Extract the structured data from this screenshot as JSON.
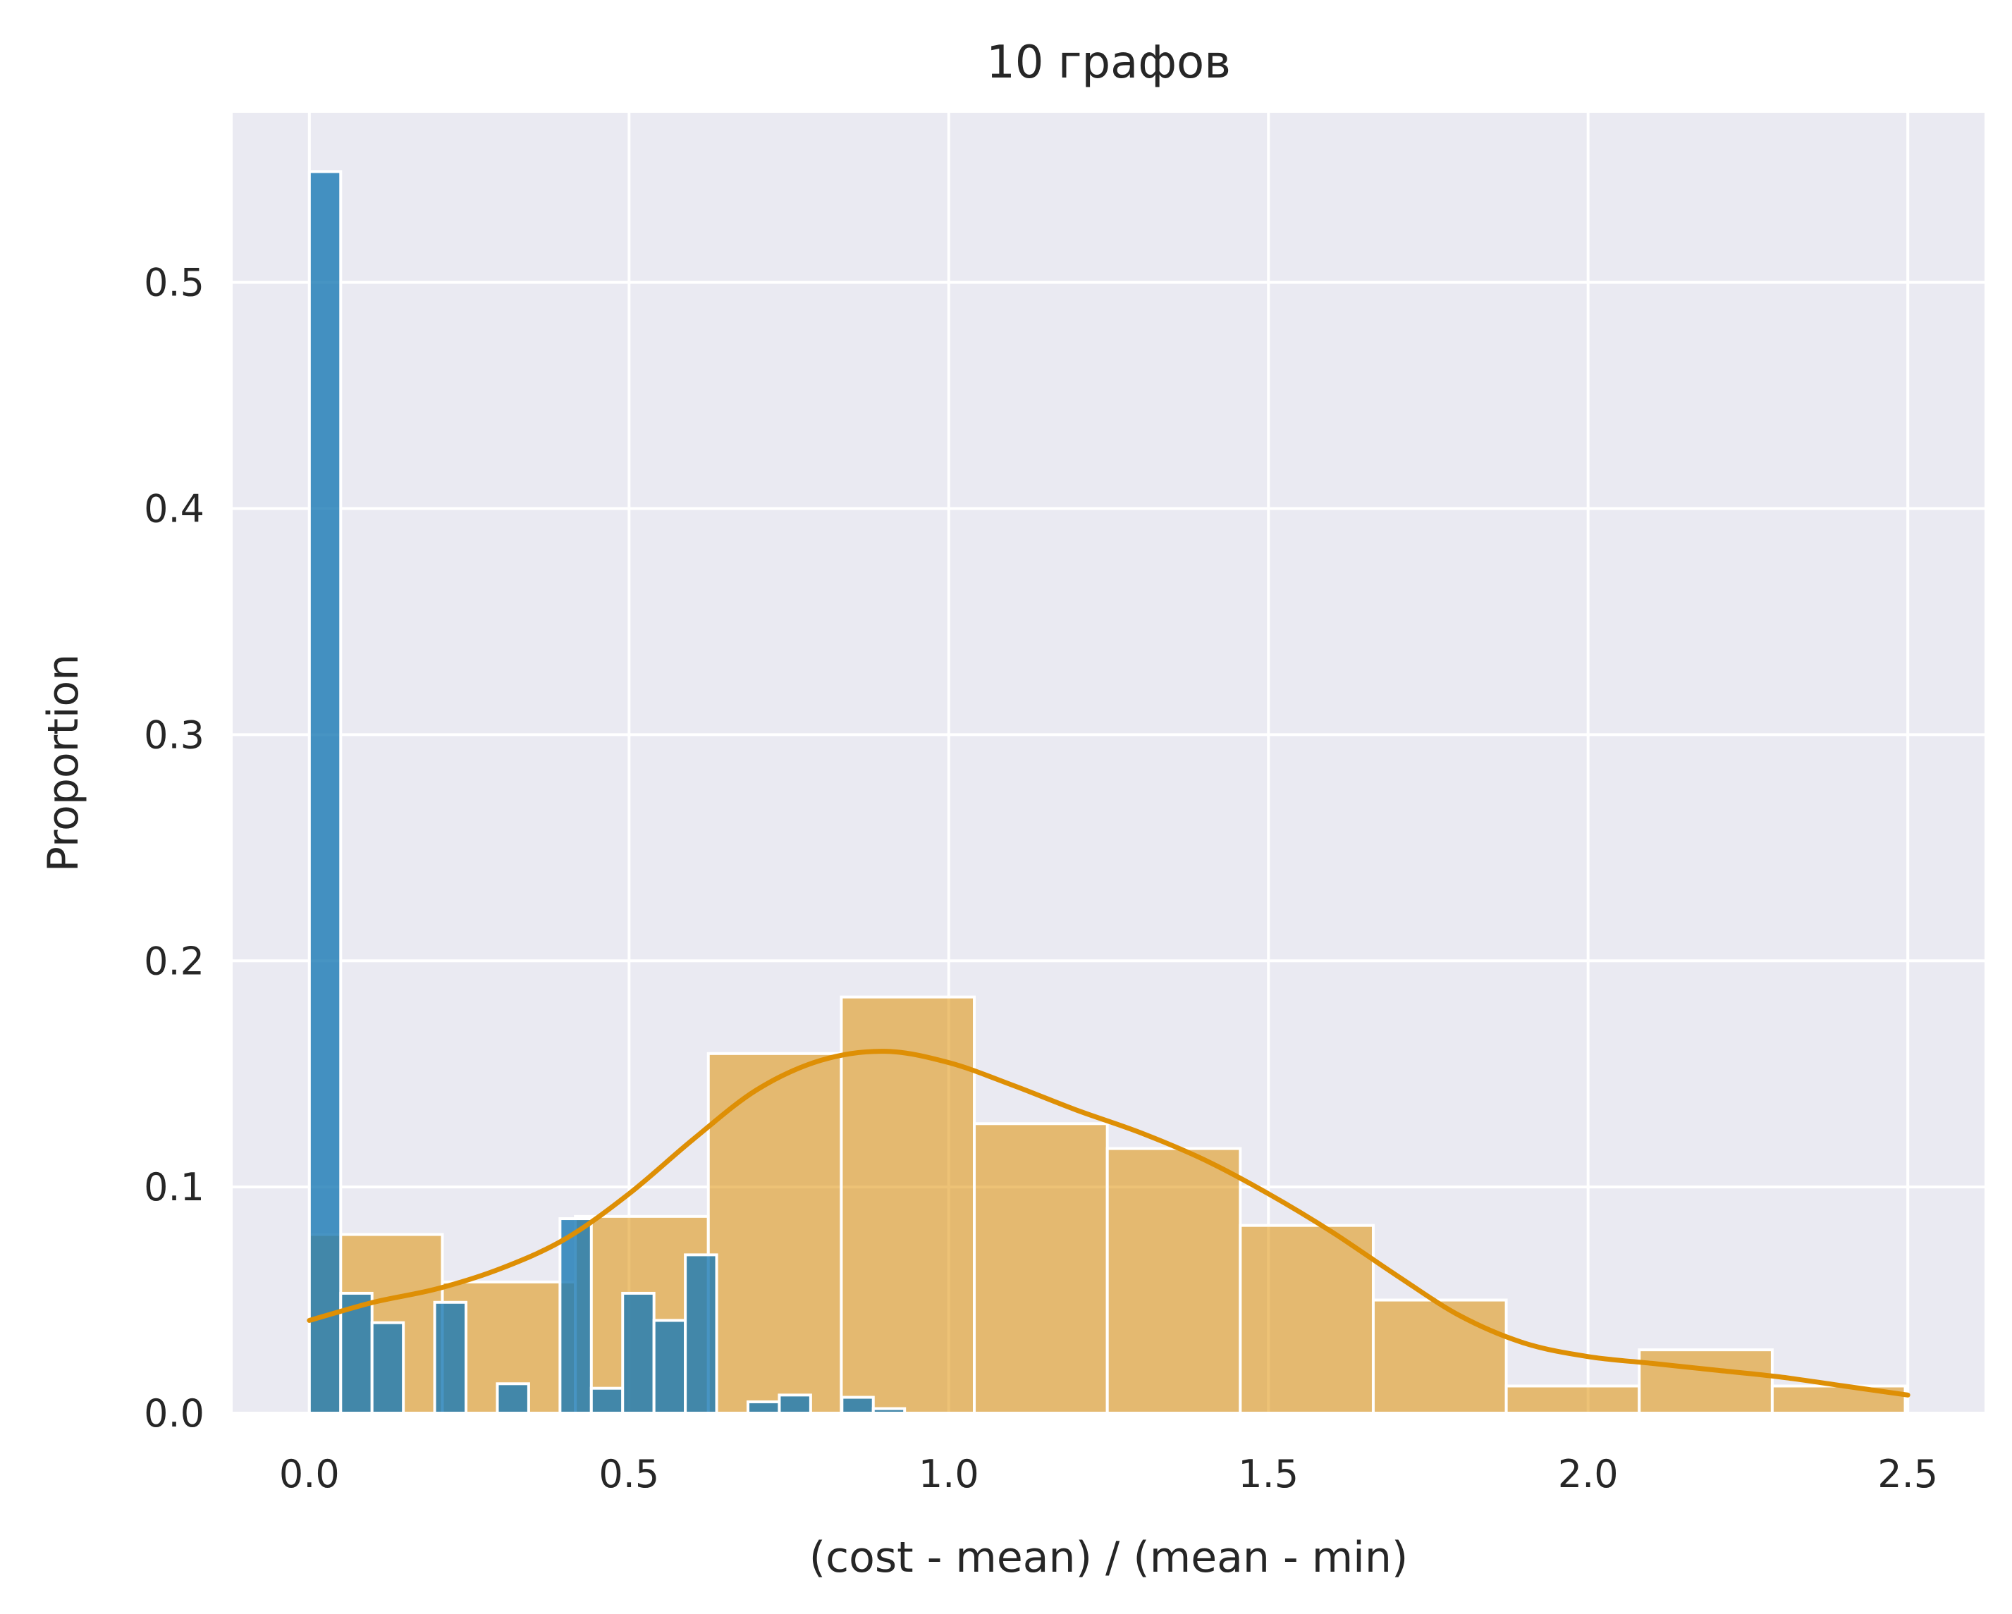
{
  "chart_data": {
    "type": "histogram",
    "title": "10 графов",
    "xlabel": "(cost - mean) / (mean - min)",
    "ylabel": "Proportion",
    "xlim": [
      -0.12,
      2.62
    ],
    "ylim": [
      0.0,
      0.575
    ],
    "xticks": [
      0.0,
      0.5,
      1.0,
      1.5,
      2.0,
      2.5
    ],
    "xtick_labels": [
      "0.0",
      "0.5",
      "1.0",
      "1.5",
      "2.0",
      "2.5"
    ],
    "yticks": [
      0.0,
      0.1,
      0.2,
      0.3,
      0.4,
      0.5
    ],
    "ytick_labels": [
      "0.0",
      "0.1",
      "0.2",
      "0.3",
      "0.4",
      "0.5"
    ],
    "grid": true,
    "background": "#eaeaf2",
    "series": [
      {
        "color": "#de8f05",
        "bin_edges": [
          0.0,
          0.208,
          0.416,
          0.624,
          0.832,
          1.04,
          1.248,
          1.456,
          1.664,
          1.872,
          2.08,
          2.288,
          2.496
        ],
        "values": [
          0.079,
          0.058,
          0.087,
          0.159,
          0.184,
          0.128,
          0.117,
          0.083,
          0.05,
          0.012,
          0.028,
          0.012
        ],
        "kde": {
          "x": [
            0.0,
            0.1,
            0.2,
            0.3,
            0.4,
            0.5,
            0.6,
            0.7,
            0.8,
            0.9,
            1.0,
            1.1,
            1.2,
            1.3,
            1.4,
            1.5,
            1.6,
            1.7,
            1.8,
            1.9,
            2.0,
            2.1,
            2.2,
            2.3,
            2.4,
            2.5
          ],
          "y": [
            0.041,
            0.049,
            0.055,
            0.064,
            0.077,
            0.097,
            0.121,
            0.143,
            0.156,
            0.16,
            0.155,
            0.145,
            0.134,
            0.124,
            0.112,
            0.097,
            0.08,
            0.061,
            0.043,
            0.031,
            0.025,
            0.022,
            0.019,
            0.016,
            0.012,
            0.008
          ]
        }
      },
      {
        "color": "#1f7db6",
        "bin_edges": [
          0.0,
          0.049,
          0.098,
          0.147,
          0.196,
          0.245,
          0.294,
          0.343,
          0.392,
          0.441,
          0.49,
          0.539,
          0.588,
          0.637,
          0.686,
          0.735,
          0.784,
          0.833,
          0.882,
          0.931
        ],
        "values": [
          0.549,
          0.053,
          0.04,
          0.0,
          0.049,
          0.0,
          0.013,
          0.0,
          0.086,
          0.011,
          0.053,
          0.041,
          0.07,
          0.0,
          0.005,
          0.008,
          0.0,
          0.007,
          0.002
        ]
      }
    ]
  }
}
